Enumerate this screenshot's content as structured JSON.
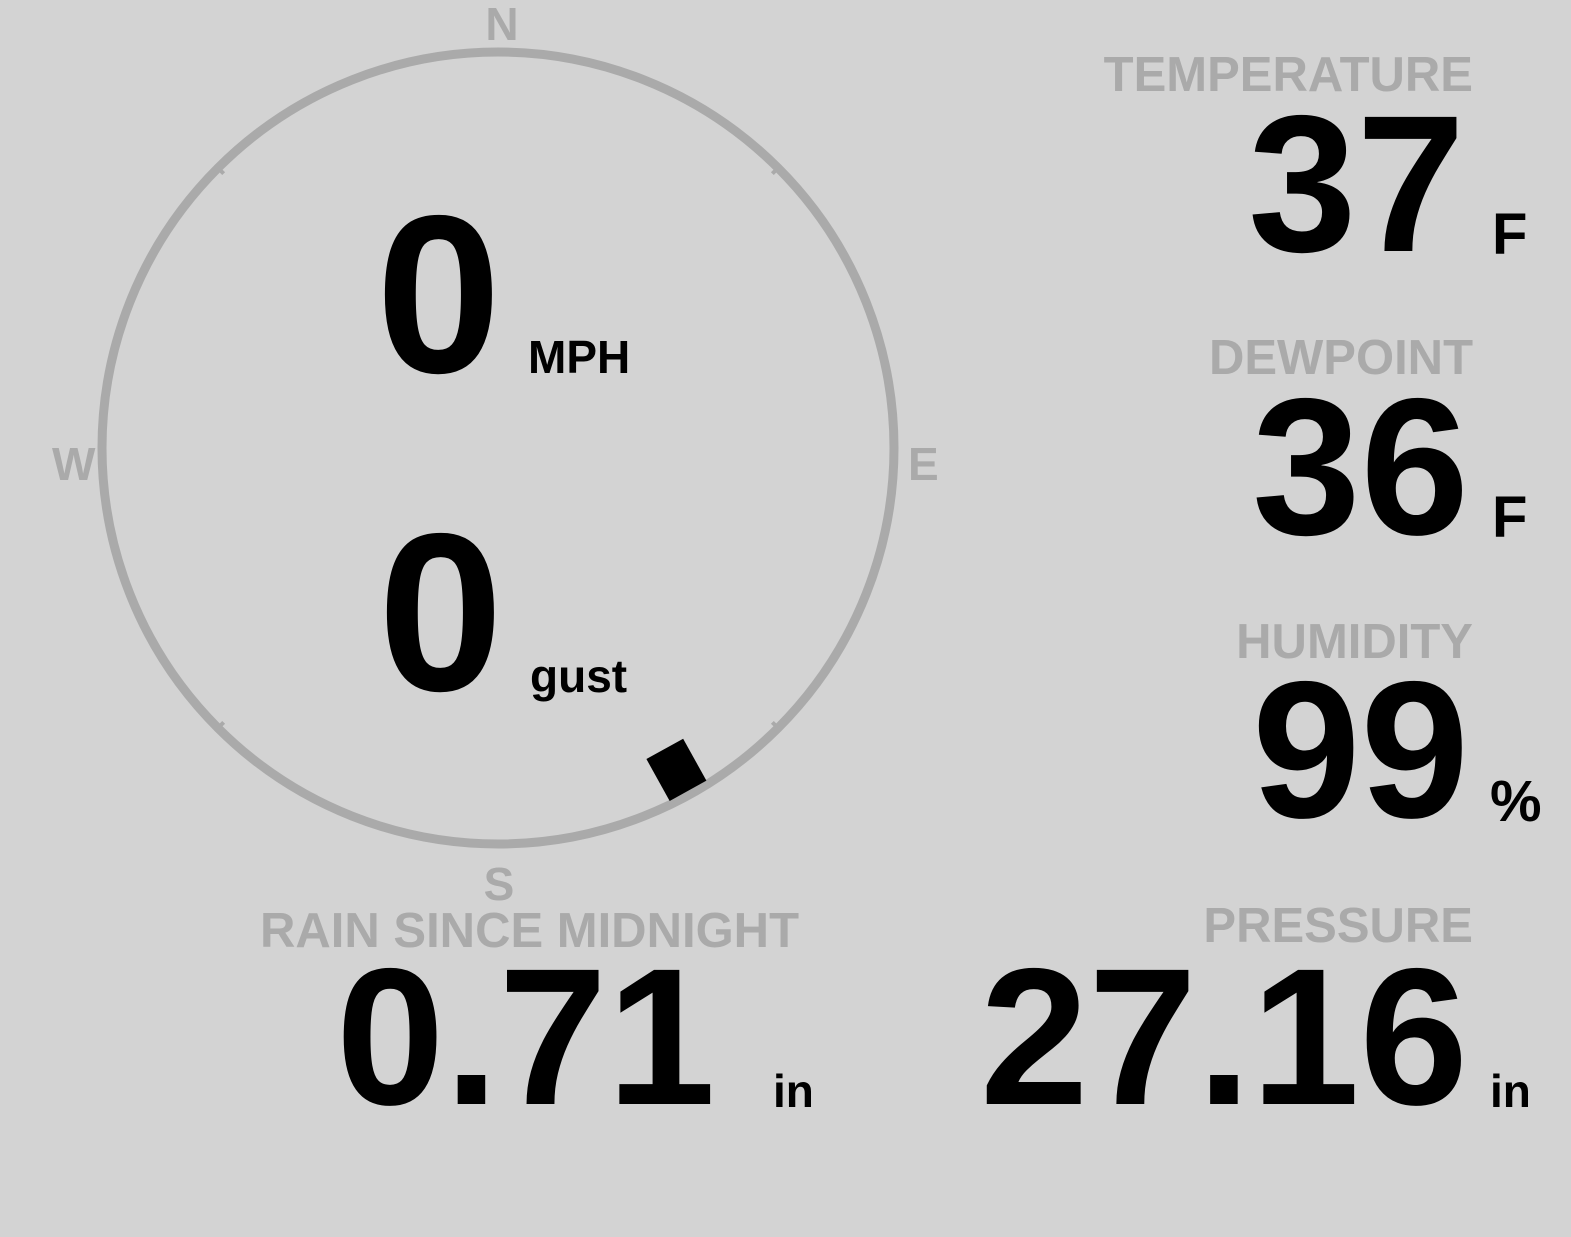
{
  "colors": {
    "background": "#d3d3d3",
    "label": "#aaaaaa",
    "value": "#000000",
    "compass_ring": "#aaaaaa",
    "wind_marker": "#000000"
  },
  "wind": {
    "speed": "0",
    "speed_unit": "MPH",
    "gust": "0",
    "gust_label": "gust",
    "direction_degrees": 151,
    "compass": {
      "n": "N",
      "e": "E",
      "s": "S",
      "w": "W"
    }
  },
  "temperature": {
    "label": "TEMPERATURE",
    "value": "37",
    "unit": "F"
  },
  "dewpoint": {
    "label": "DEWPOINT",
    "value": "36",
    "unit": "F"
  },
  "humidity": {
    "label": "HUMIDITY",
    "value": "99",
    "unit": "%"
  },
  "rain": {
    "label": "RAIN SINCE MIDNIGHT",
    "value": "0.71",
    "unit": "in"
  },
  "pressure": {
    "label": "PRESSURE",
    "value": "27.16",
    "unit": "in"
  }
}
